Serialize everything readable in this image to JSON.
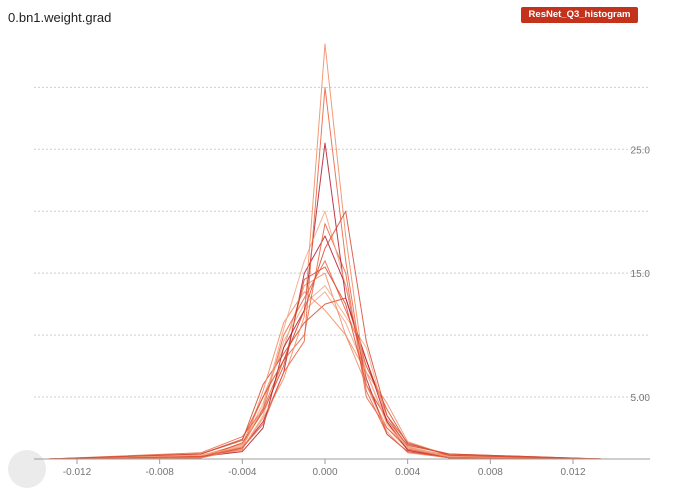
{
  "card": {
    "title": "0.bn1.weight.grad",
    "run_label": "ResNet_Q3_histogram"
  },
  "chart_data": {
    "type": "line",
    "title": "0.bn1.weight.grad",
    "xlabel": "",
    "ylabel": "",
    "xlim": [
      -0.0135,
      0.0135
    ],
    "ylim": [
      0,
      33.5
    ],
    "x_ticks": [
      -0.012,
      -0.008,
      -0.004,
      0.0,
      0.004,
      0.008,
      0.012
    ],
    "x_tick_labels": [
      "-0.012",
      "-0.008",
      "-0.004",
      "0.000",
      "0.004",
      "0.008",
      "0.012"
    ],
    "y_ticks": [
      5,
      15,
      25
    ],
    "y_tick_labels": [
      "5.00",
      "15.0",
      "25.0"
    ],
    "y_gridlines": [
      0,
      5,
      10,
      15,
      20,
      25,
      30
    ],
    "grid": true,
    "series_colors": [
      "#f4a582",
      "#ef8a62",
      "#e9603e",
      "#d6492e",
      "#b2182b"
    ],
    "series": [
      {
        "x": [
          -0.0134,
          -0.006,
          -0.004,
          -0.003,
          -0.002,
          -0.001,
          0.0,
          0.001,
          0.002,
          0.003,
          0.004,
          0.006,
          0.0134
        ],
        "values": [
          0,
          0.1,
          0.8,
          3.5,
          8,
          12,
          13.5,
          11,
          7,
          3,
          0.8,
          0.1,
          0
        ]
      },
      {
        "x": [
          -0.0134,
          -0.006,
          -0.004,
          -0.003,
          -0.002,
          -0.001,
          0.0,
          0.001,
          0.002,
          0.003,
          0.004,
          0.006,
          0.0134
        ],
        "values": [
          0,
          0.3,
          1.2,
          5,
          9,
          14,
          15,
          10,
          6,
          2.5,
          1,
          0.2,
          0
        ]
      },
      {
        "x": [
          -0.0134,
          -0.006,
          -0.004,
          -0.003,
          -0.002,
          -0.001,
          0.0,
          0.001,
          0.002,
          0.003,
          0.004,
          0.006,
          0.0134
        ],
        "values": [
          0,
          0.2,
          1,
          4,
          10,
          13,
          16,
          12,
          8,
          3.5,
          0.9,
          0.3,
          0
        ]
      },
      {
        "x": [
          -0.0134,
          -0.006,
          -0.004,
          -0.003,
          -0.002,
          -0.001,
          0.0,
          0.001,
          0.002,
          0.003,
          0.004,
          0.006,
          0.0134
        ],
        "values": [
          0,
          0.4,
          1.5,
          6,
          8.5,
          11,
          12.5,
          13,
          7.5,
          4,
          1.2,
          0.4,
          0
        ]
      },
      {
        "x": [
          -0.0134,
          -0.006,
          -0.004,
          -0.003,
          -0.002,
          -0.001,
          0.0,
          0.001,
          0.002,
          0.003,
          0.004,
          0.006,
          0.0134
        ],
        "values": [
          0,
          0.1,
          0.9,
          3,
          7,
          15,
          18,
          14,
          6.5,
          2,
          0.6,
          0.1,
          0
        ]
      },
      {
        "x": [
          -0.0134,
          -0.006,
          -0.004,
          -0.003,
          -0.002,
          -0.001,
          0.0,
          0.001,
          0.002,
          0.003,
          0.004,
          0.006,
          0.0134
        ],
        "values": [
          0,
          0.3,
          1.1,
          4.5,
          9.5,
          12.5,
          14,
          11.5,
          9,
          3,
          1,
          0.2,
          0
        ]
      },
      {
        "x": [
          -0.0134,
          -0.006,
          -0.004,
          -0.003,
          -0.002,
          -0.001,
          0.0,
          0.001,
          0.002,
          0.003,
          0.004,
          0.006,
          0.0134
        ],
        "values": [
          0,
          0.2,
          0.7,
          5.5,
          11,
          13.5,
          12,
          10,
          7,
          4.5,
          1.4,
          0.3,
          0
        ]
      },
      {
        "x": [
          -0.0134,
          -0.006,
          -0.004,
          -0.003,
          -0.002,
          -0.001,
          0.0,
          0.001,
          0.002,
          0.003,
          0.004,
          0.006,
          0.0134
        ],
        "values": [
          0,
          0.5,
          1.8,
          4,
          8,
          10,
          19,
          15,
          5,
          2.5,
          0.8,
          0.2,
          0
        ]
      },
      {
        "x": [
          -0.0134,
          -0.006,
          -0.004,
          -0.003,
          -0.002,
          -0.001,
          0.0,
          0.001,
          0.002,
          0.003,
          0.004,
          0.006,
          0.0134
        ],
        "values": [
          0,
          0.1,
          1.3,
          3.8,
          7.5,
          14.5,
          15.5,
          12.5,
          6,
          3.2,
          1.1,
          0.4,
          0
        ]
      },
      {
        "x": [
          -0.0134,
          -0.006,
          -0.004,
          -0.003,
          -0.002,
          -0.001,
          0.0,
          0.001,
          0.002,
          0.003,
          0.004,
          0.006,
          0.0134
        ],
        "values": [
          0,
          0.2,
          0.6,
          2.5,
          9,
          12,
          25.5,
          13,
          8,
          3,
          0.7,
          0.1,
          0
        ]
      },
      {
        "x": [
          -0.0134,
          -0.006,
          -0.004,
          -0.003,
          -0.002,
          -0.001,
          0.0,
          0.001,
          0.002,
          0.003,
          0.004,
          0.006,
          0.0134
        ],
        "values": [
          0,
          0.3,
          1,
          4.2,
          10.5,
          16,
          20,
          14,
          7,
          2.8,
          0.9,
          0.2,
          0
        ]
      },
      {
        "x": [
          -0.0134,
          -0.006,
          -0.004,
          -0.003,
          -0.002,
          -0.001,
          0.0,
          0.001,
          0.002,
          0.003,
          0.004,
          0.006,
          0.0134
        ],
        "values": [
          0,
          0.1,
          0.8,
          3.3,
          6.5,
          11.5,
          33.5,
          18,
          6,
          2.2,
          0.5,
          0.1,
          0
        ]
      },
      {
        "x": [
          -0.0134,
          -0.006,
          -0.004,
          -0.003,
          -0.002,
          -0.001,
          0.0,
          0.001,
          0.002,
          0.003,
          0.004,
          0.006,
          0.0134
        ],
        "values": [
          0,
          0.2,
          0.9,
          2.8,
          7,
          9.5,
          30,
          16,
          5.5,
          2,
          0.6,
          0.1,
          0
        ]
      },
      {
        "x": [
          -0.0134,
          -0.006,
          -0.004,
          -0.003,
          -0.002,
          -0.001,
          0.0,
          0.001,
          0.002,
          0.003,
          0.004,
          0.006,
          0.0134
        ],
        "values": [
          0,
          0.4,
          1.6,
          5,
          8,
          12,
          17,
          20,
          9.5,
          3.5,
          1.3,
          0.3,
          0
        ]
      }
    ]
  }
}
